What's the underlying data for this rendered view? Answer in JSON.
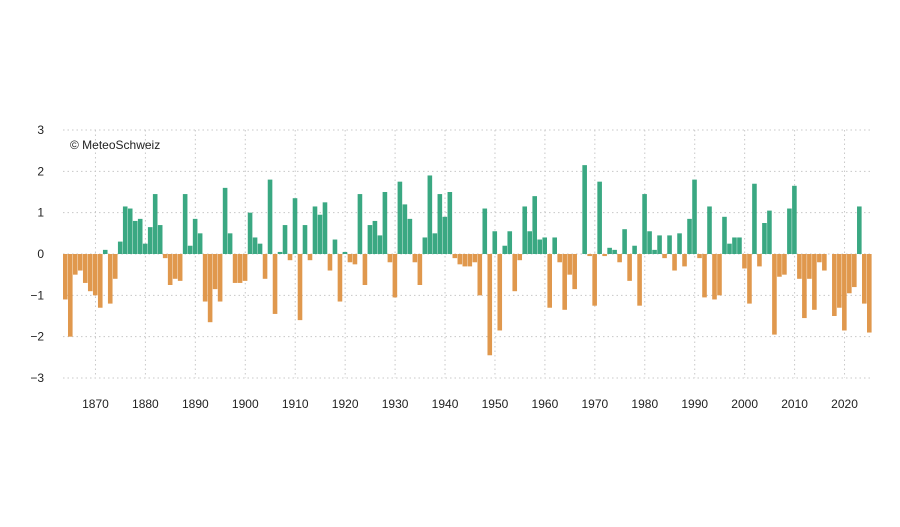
{
  "copyright": "© MeteoSchweiz",
  "chart_data": {
    "type": "bar",
    "x_start": 1864,
    "x_end": 2023,
    "ylim": [
      -3,
      3
    ],
    "yticks": [
      "3",
      "2",
      "1",
      "0",
      "−1",
      "−2",
      "−3"
    ],
    "xticks": [
      "1870",
      "1880",
      "1890",
      "1900",
      "1910",
      "1920",
      "1930",
      "1940",
      "1950",
      "1960",
      "1970",
      "1980",
      "1990",
      "2000",
      "2010",
      "2020"
    ],
    "grid": true,
    "colors": {
      "positive": "#3aa882",
      "negative": "#e0984d"
    },
    "values": [
      -1.1,
      -2.0,
      -0.5,
      -0.4,
      -0.7,
      -0.9,
      -1.0,
      -1.3,
      0.1,
      -1.2,
      -0.6,
      0.3,
      1.15,
      1.1,
      0.8,
      0.85,
      0.25,
      0.65,
      1.45,
      0.7,
      -0.1,
      -0.75,
      -0.6,
      -0.65,
      1.45,
      0.2,
      0.85,
      0.5,
      -1.15,
      -1.65,
      -0.85,
      -1.15,
      1.6,
      0.5,
      -0.7,
      -0.7,
      -0.65,
      1.0,
      0.4,
      0.25,
      -0.6,
      1.8,
      -1.45,
      0.05,
      0.7,
      -0.15,
      1.35,
      -1.6,
      0.7,
      -0.15,
      1.15,
      0.95,
      1.25,
      -0.4,
      0.35,
      -1.15,
      0.05,
      -0.2,
      -0.25,
      1.45,
      -0.75,
      0.7,
      0.8,
      0.45,
      1.5,
      -0.2,
      -1.05,
      1.75,
      1.2,
      0.85,
      -0.2,
      -0.75,
      0.4,
      1.9,
      0.5,
      1.45,
      0.9,
      1.5,
      -0.1,
      -0.25,
      -0.3,
      -0.3,
      -0.2,
      -1.0,
      1.1,
      -2.45,
      0.55,
      -1.85,
      0.2,
      0.55,
      -0.9,
      -0.15,
      1.15,
      0.55,
      1.4,
      0.35,
      0.4,
      -1.3,
      0.4,
      -0.2,
      -1.35,
      -0.5,
      -0.85,
      0.0,
      2.15,
      -0.05,
      -1.25,
      1.75,
      -0.05,
      0.15,
      0.1,
      -0.2,
      0.6,
      -0.65,
      0.2,
      -1.25,
      1.45,
      0.55,
      0.1,
      0.45,
      -0.1,
      0.45,
      -0.4,
      0.5,
      -0.3,
      0.85,
      1.8,
      -0.1,
      -1.05,
      1.15,
      -1.1,
      -1.0,
      0.9,
      0.25,
      0.4,
      0.4,
      -0.35,
      -1.2,
      1.7,
      -0.3,
      0.75,
      1.05,
      -1.95,
      -0.55,
      -0.5,
      1.1,
      1.65,
      -0.6,
      -1.55,
      -0.6,
      -1.35,
      -0.2,
      -0.4,
      0.0,
      -1.5,
      -1.3,
      -1.85,
      -0.95,
      -0.8,
      1.15,
      -1.2,
      -1.9
    ]
  }
}
